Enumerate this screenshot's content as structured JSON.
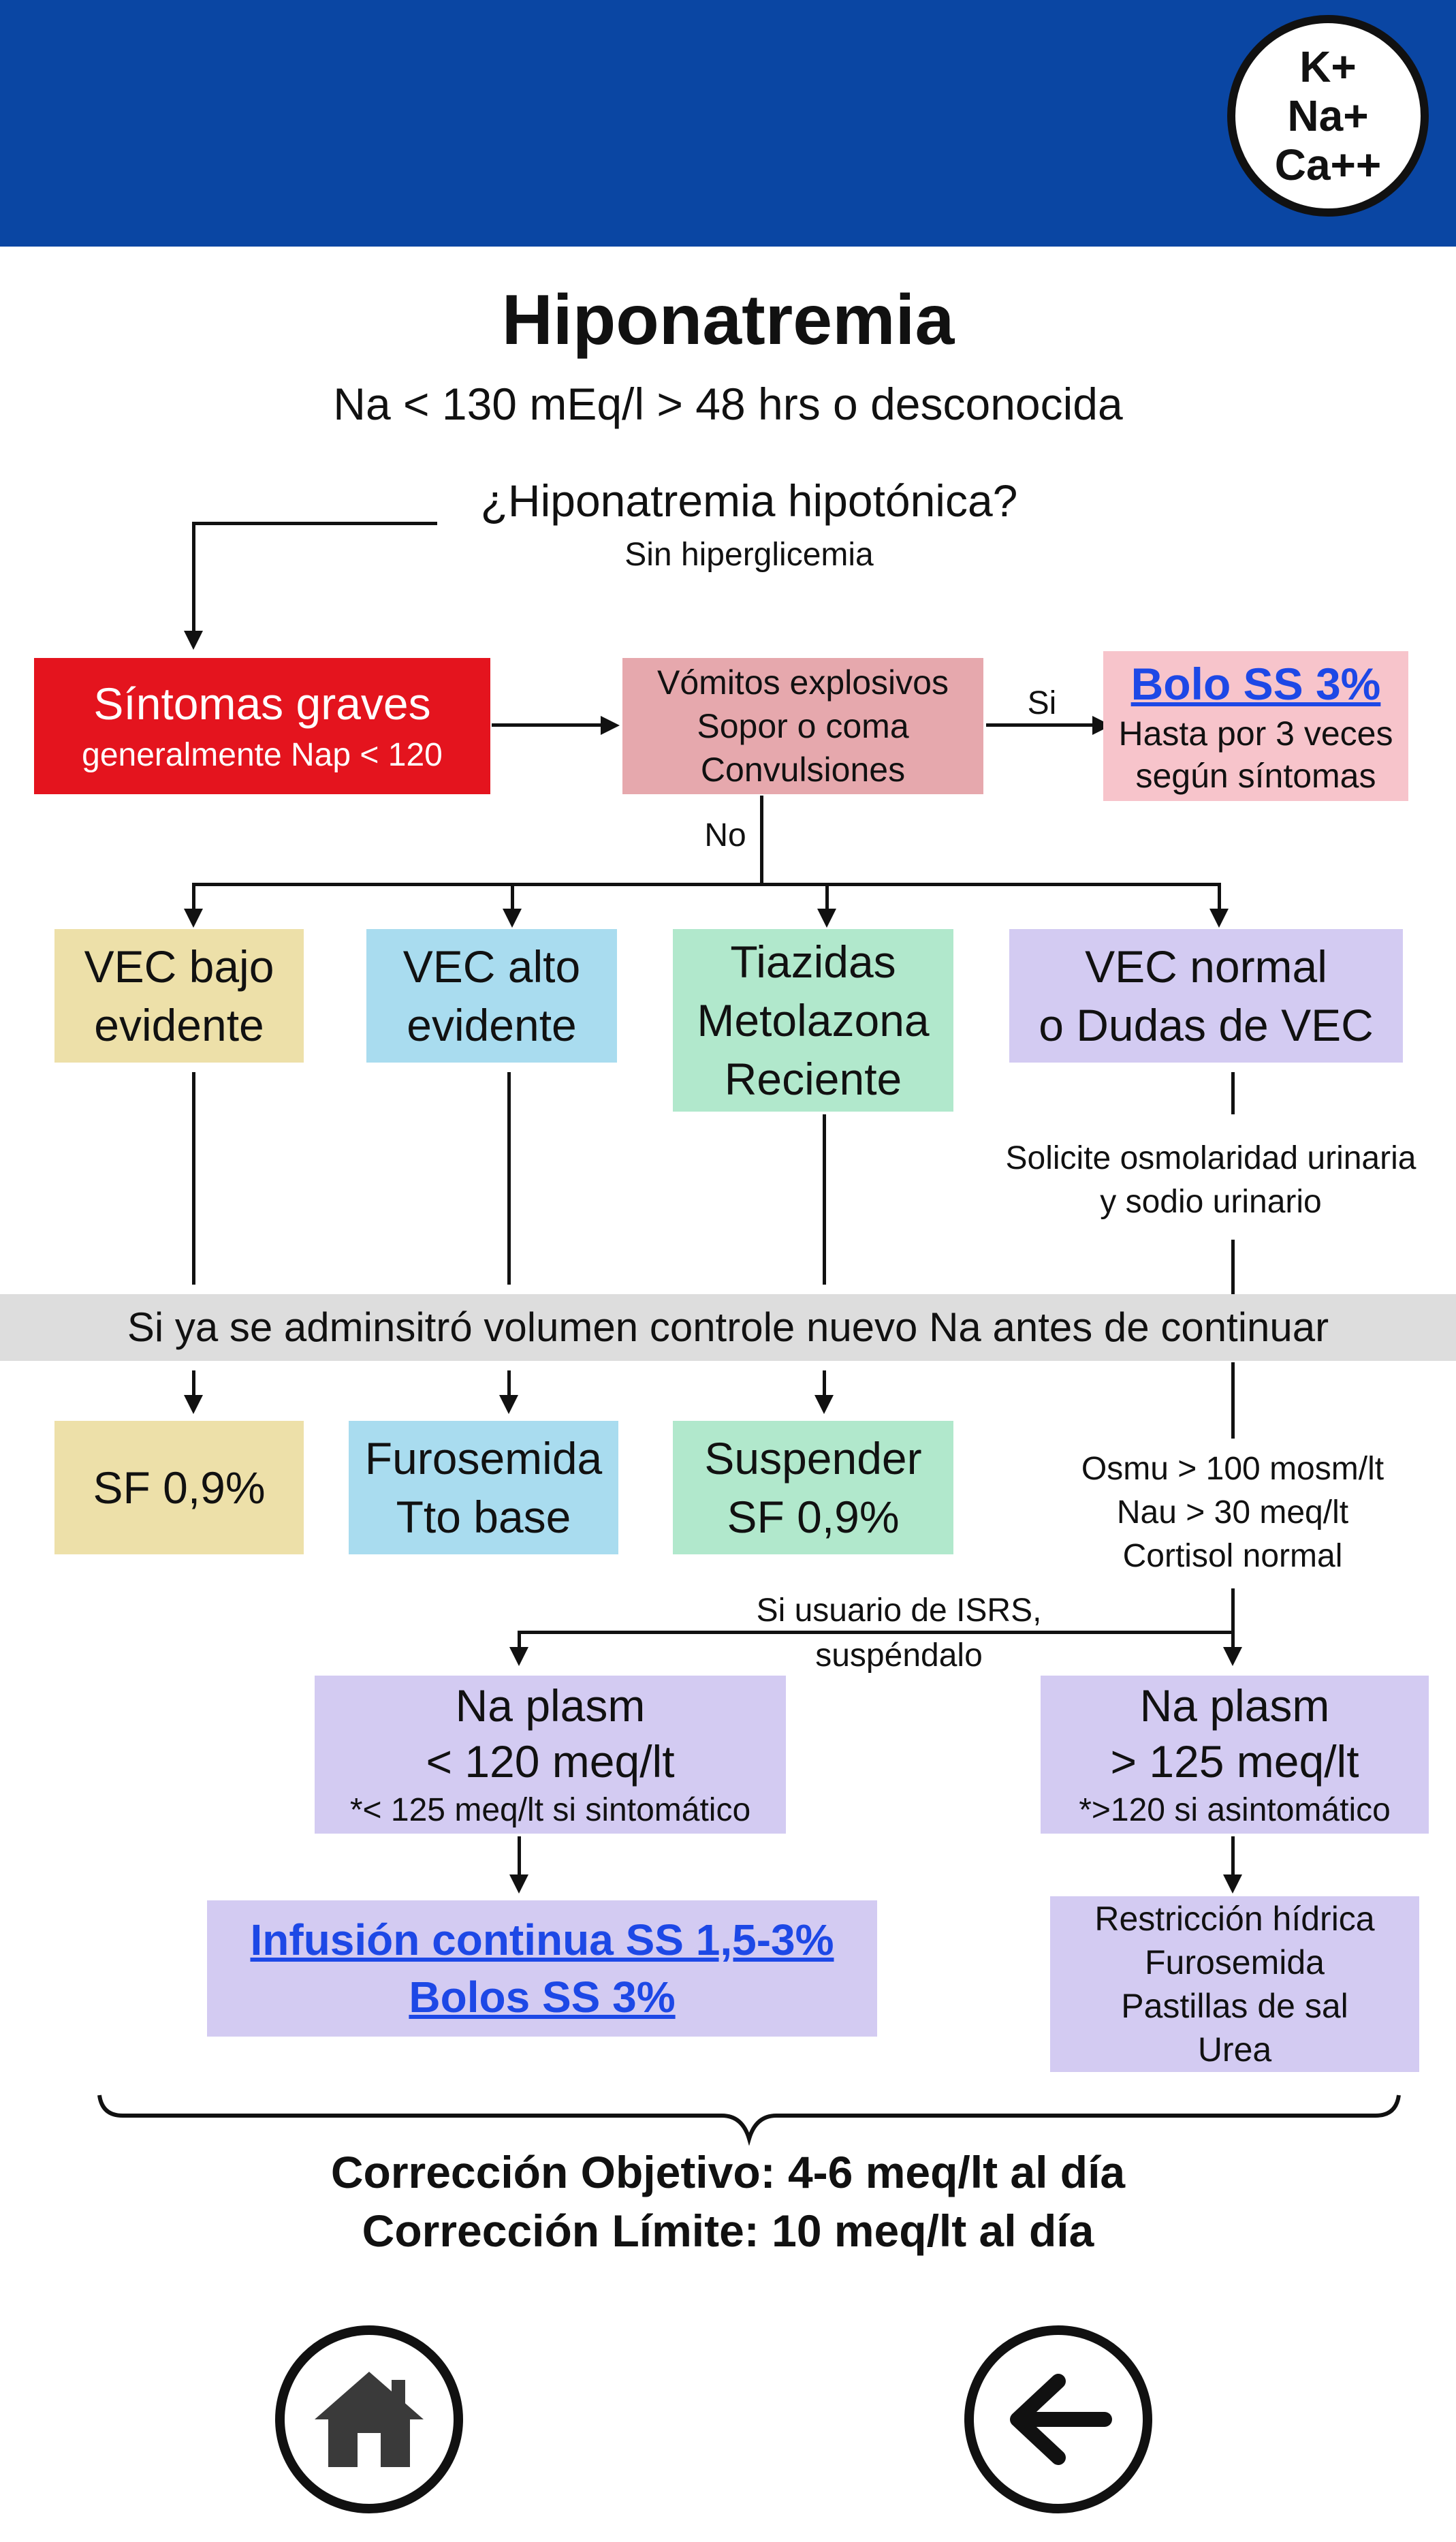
{
  "header": {
    "badge_line1": "K+",
    "badge_line2": "Na+",
    "badge_line3": "Ca++"
  },
  "title": "Hiponatremia",
  "subtitle": "Na < 130 mEq/l > 48 hrs o desconocida",
  "question": {
    "main": "¿Hiponatremia hipotónica?",
    "sub": "Sin hiperglicemia"
  },
  "severe": {
    "title": "Síntomas graves",
    "sub": "generalmente Nap < 120"
  },
  "symptoms": {
    "l1": "Vómitos explosivos",
    "l2": "Sopor o coma",
    "l3": "Convulsiones"
  },
  "yes_label": "Si",
  "no_label": "No",
  "bolo": {
    "link": "Bolo SS 3%",
    "l1": "Hasta por 3 veces",
    "l2": "según síntomas"
  },
  "categories": {
    "vec_bajo": {
      "l1": "VEC bajo",
      "l2": "evidente"
    },
    "vec_alto": {
      "l1": "VEC alto",
      "l2": "evidente"
    },
    "tiazidas": {
      "l1": "Tiazidas",
      "l2": "Metolazona",
      "l3": "Reciente"
    },
    "vec_normal": {
      "l1": "VEC normal",
      "l2": "o Dudas de VEC"
    }
  },
  "urine_request": {
    "l1": "Solicite osmolaridad urinaria",
    "l2": "y sodio urinario"
  },
  "band_text": "Si ya se adminsitró volumen controle nuevo Na antes de continuar",
  "treatments": {
    "sf": "SF 0,9%",
    "furosemida": {
      "l1": "Furosemida",
      "l2": "Tto base"
    },
    "suspender": {
      "l1": "Suspender",
      "l2": "SF 0,9%"
    }
  },
  "criteria": {
    "l1": "Osmu > 100 mosm/lt",
    "l2": "Nau > 30 meq/lt",
    "l3": "Cortisol normal"
  },
  "isrs": {
    "l1": "Si usuario de ISRS,",
    "l2": "suspéndalo"
  },
  "na_low": {
    "l1": "Na plasm",
    "l2": "< 120 meq/lt",
    "l3": "*< 125 meq/lt si sintomático"
  },
  "na_high": {
    "l1": "Na plasm",
    "l2": "> 125 meq/lt",
    "l3": "*>120 si asintomático"
  },
  "infusion": {
    "l1": "Infusión continua SS 1,5-3%",
    "l2": "Bolos SS 3%"
  },
  "restriction": {
    "l1": "Restricción hídrica",
    "l2": "Furosemida",
    "l3": "Pastillas de sal",
    "l4": "Urea"
  },
  "correction": {
    "l1": "Corrección Objetivo: 4-6 meq/lt al día",
    "l2": "Corrección Límite: 10 meq/lt al día"
  },
  "nav": {
    "home_icon": "home-icon",
    "back_icon": "arrow-left-icon"
  },
  "colors": {
    "header": "#0a46a3",
    "red": "#e4141e",
    "pink": "#f7c4cb",
    "yellow": "#ede0a9",
    "blue": "#a9dcef",
    "green": "#b1e8cc",
    "purple": "#d3cbf2",
    "link": "#1d48e6"
  }
}
